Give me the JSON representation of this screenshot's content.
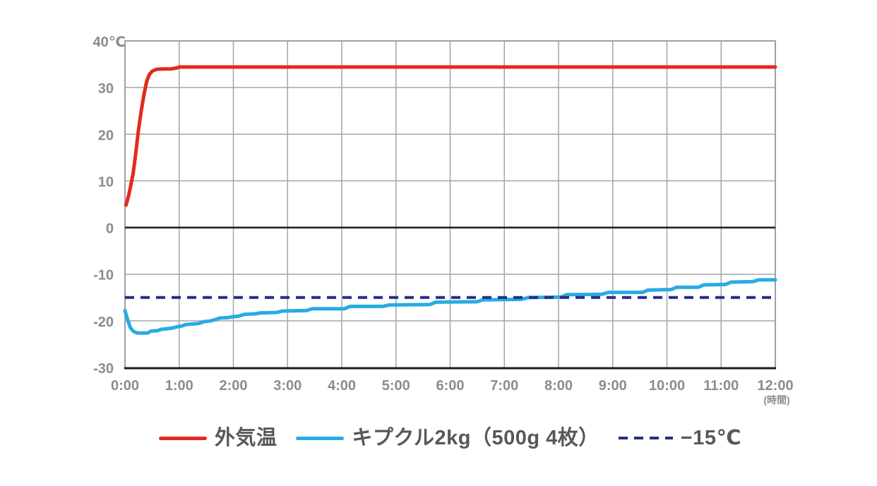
{
  "chart_data": {
    "type": "line",
    "title": "",
    "x_axis": {
      "range_hours": [
        0,
        12
      ],
      "tick_hours": [
        0,
        1,
        2,
        3,
        4,
        5,
        6,
        7,
        8,
        9,
        10,
        11,
        12
      ],
      "tick_labels": [
        "0:00",
        "1:00",
        "2:00",
        "3:00",
        "4:00",
        "5:00",
        "6:00",
        "7:00",
        "8:00",
        "9:00",
        "10:00",
        "11:00",
        "12:00"
      ],
      "unit_label": "(時間)"
    },
    "y_axis": {
      "range_celsius": [
        -30,
        40
      ],
      "tick_values": [
        40,
        30,
        20,
        10,
        0,
        -10,
        -20,
        -30
      ],
      "tick_labels": [
        "40℃",
        "30",
        "20",
        "10",
        "0",
        "-10",
        "-20",
        "-30"
      ],
      "grid_step": 10
    },
    "grid": {
      "vertical_every_hours": 1,
      "horizontal_every_deg": 10,
      "zero_line_emphasis": true
    },
    "legend_position": "bottom",
    "series": [
      {
        "name": "外気温",
        "style": "solid",
        "color": "#e6281e",
        "points": [
          [
            0.02,
            4.8
          ],
          [
            0.07,
            7.0
          ],
          [
            0.1,
            8.7
          ],
          [
            0.15,
            11.5
          ],
          [
            0.2,
            16.0
          ],
          [
            0.25,
            21.0
          ],
          [
            0.3,
            25.0
          ],
          [
            0.35,
            28.5
          ],
          [
            0.4,
            31.3
          ],
          [
            0.45,
            32.8
          ],
          [
            0.5,
            33.5
          ],
          [
            0.58,
            33.9
          ],
          [
            0.7,
            34.0
          ],
          [
            0.85,
            34.0
          ],
          [
            0.95,
            34.2
          ],
          [
            1.0,
            34.4
          ],
          [
            2.0,
            34.4
          ],
          [
            3.0,
            34.4
          ],
          [
            4.0,
            34.4
          ],
          [
            5.0,
            34.4
          ],
          [
            6.0,
            34.4
          ],
          [
            7.0,
            34.4
          ],
          [
            8.0,
            34.4
          ],
          [
            9.0,
            34.4
          ],
          [
            10.0,
            34.4
          ],
          [
            11.0,
            34.4
          ],
          [
            12.0,
            34.4
          ]
        ]
      },
      {
        "name": "キプクル2kg（500g 4枚）",
        "style": "solid",
        "color": "#29abe2",
        "points": [
          [
            0.0,
            -17.8
          ],
          [
            0.05,
            -19.8
          ],
          [
            0.1,
            -21.5
          ],
          [
            0.16,
            -22.3
          ],
          [
            0.23,
            -22.6
          ],
          [
            0.42,
            -22.6
          ],
          [
            0.48,
            -22.2
          ],
          [
            0.6,
            -22.1
          ],
          [
            0.68,
            -21.8
          ],
          [
            0.85,
            -21.6
          ],
          [
            0.95,
            -21.3
          ],
          [
            1.05,
            -21.1
          ],
          [
            1.12,
            -20.8
          ],
          [
            1.35,
            -20.6
          ],
          [
            1.45,
            -20.2
          ],
          [
            1.58,
            -20.0
          ],
          [
            1.65,
            -19.8
          ],
          [
            1.75,
            -19.4
          ],
          [
            1.9,
            -19.3
          ],
          [
            2.0,
            -19.1
          ],
          [
            2.1,
            -19.0
          ],
          [
            2.2,
            -18.6
          ],
          [
            2.4,
            -18.5
          ],
          [
            2.5,
            -18.3
          ],
          [
            2.8,
            -18.2
          ],
          [
            2.9,
            -17.9
          ],
          [
            3.35,
            -17.8
          ],
          [
            3.45,
            -17.4
          ],
          [
            4.05,
            -17.4
          ],
          [
            4.15,
            -16.9
          ],
          [
            4.76,
            -16.9
          ],
          [
            4.87,
            -16.6
          ],
          [
            5.63,
            -16.5
          ],
          [
            5.73,
            -16.0
          ],
          [
            6.5,
            -15.9
          ],
          [
            6.6,
            -15.5
          ],
          [
            7.3,
            -15.4
          ],
          [
            7.45,
            -15.0
          ],
          [
            8.05,
            -14.9
          ],
          [
            8.15,
            -14.4
          ],
          [
            8.8,
            -14.3
          ],
          [
            8.92,
            -13.9
          ],
          [
            9.55,
            -13.9
          ],
          [
            9.65,
            -13.4
          ],
          [
            10.08,
            -13.3
          ],
          [
            10.18,
            -12.8
          ],
          [
            10.58,
            -12.8
          ],
          [
            10.68,
            -12.3
          ],
          [
            11.08,
            -12.2
          ],
          [
            11.18,
            -11.7
          ],
          [
            11.58,
            -11.6
          ],
          [
            11.7,
            -11.2
          ],
          [
            12.0,
            -11.2
          ]
        ]
      },
      {
        "name": "−15℃",
        "style": "dashed",
        "color": "#232e87",
        "threshold_value": -15
      }
    ]
  },
  "colors": {
    "background": "#ffffff",
    "grid": "#a5a5a5",
    "border": "#a0a0a0",
    "zero_line": "#231815",
    "bottom_axis": "#231815",
    "tick_text": "#8c8c8c",
    "legend_text": "#595757"
  }
}
